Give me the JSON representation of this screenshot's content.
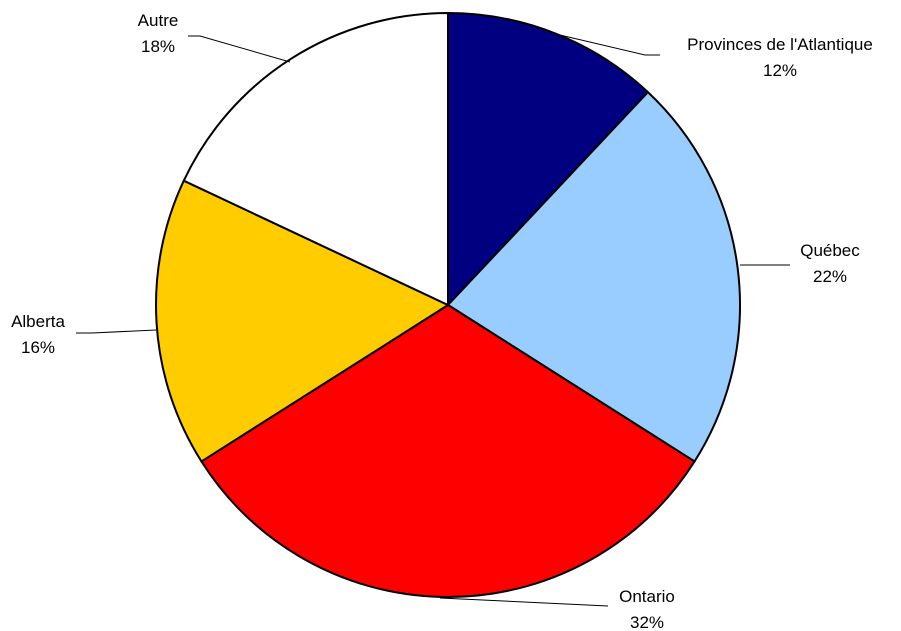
{
  "chart_data": {
    "type": "pie",
    "title": "",
    "slices": [
      {
        "label": "Provinces de l'Atlantique",
        "value": 12,
        "value_label": "12%",
        "color": "#000080"
      },
      {
        "label": "Québec",
        "value": 22,
        "value_label": "22%",
        "color": "#99CCFF"
      },
      {
        "label": "Ontario",
        "value": 32,
        "value_label": "32%",
        "color": "#FF0000"
      },
      {
        "label": "Alberta",
        "value": 16,
        "value_label": "16%",
        "color": "#FFCC00"
      },
      {
        "label": "Autre",
        "value": 18,
        "value_label": "18%",
        "color": "#FFFFFF"
      }
    ],
    "start_angle": "12 o'clock",
    "direction": "clockwise",
    "legend": "none",
    "outline_color": "#000000"
  }
}
